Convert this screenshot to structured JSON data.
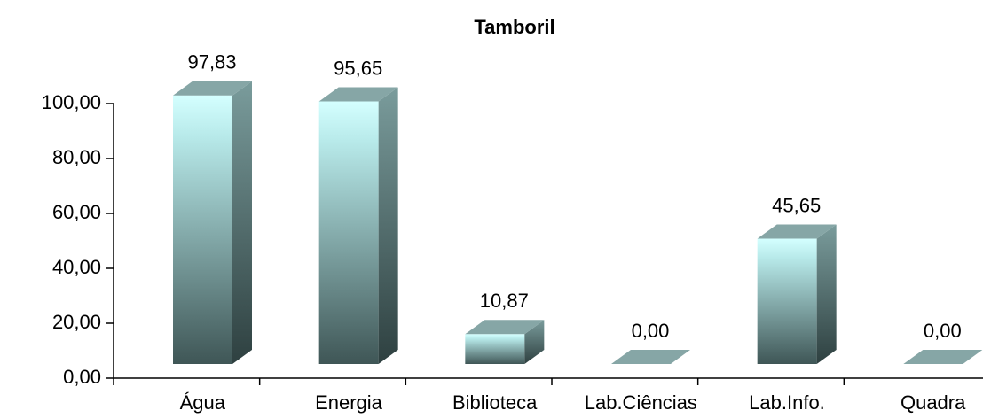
{
  "chart_data": {
    "type": "bar3d",
    "title": "Tamboril",
    "categories": [
      "Água",
      "Energia",
      "Biblioteca",
      "Lab.Ciências",
      "Lab.Info.",
      "Quadra"
    ],
    "values": [
      97.83,
      95.65,
      10.87,
      0,
      45.65,
      0
    ],
    "value_labels": [
      "97,83",
      "95,65",
      "10,87",
      "0,00",
      "45,65",
      "0,00"
    ],
    "ylim": [
      0,
      100
    ],
    "yticks": [
      {
        "value": 0,
        "label": "0,00"
      },
      {
        "value": 20,
        "label": "20,00"
      },
      {
        "value": 40,
        "label": "40,00"
      },
      {
        "value": 60,
        "label": "60,00"
      },
      {
        "value": 80,
        "label": "80,00"
      },
      {
        "value": 100,
        "label": "100,00"
      }
    ],
    "color": "#ccffff"
  }
}
